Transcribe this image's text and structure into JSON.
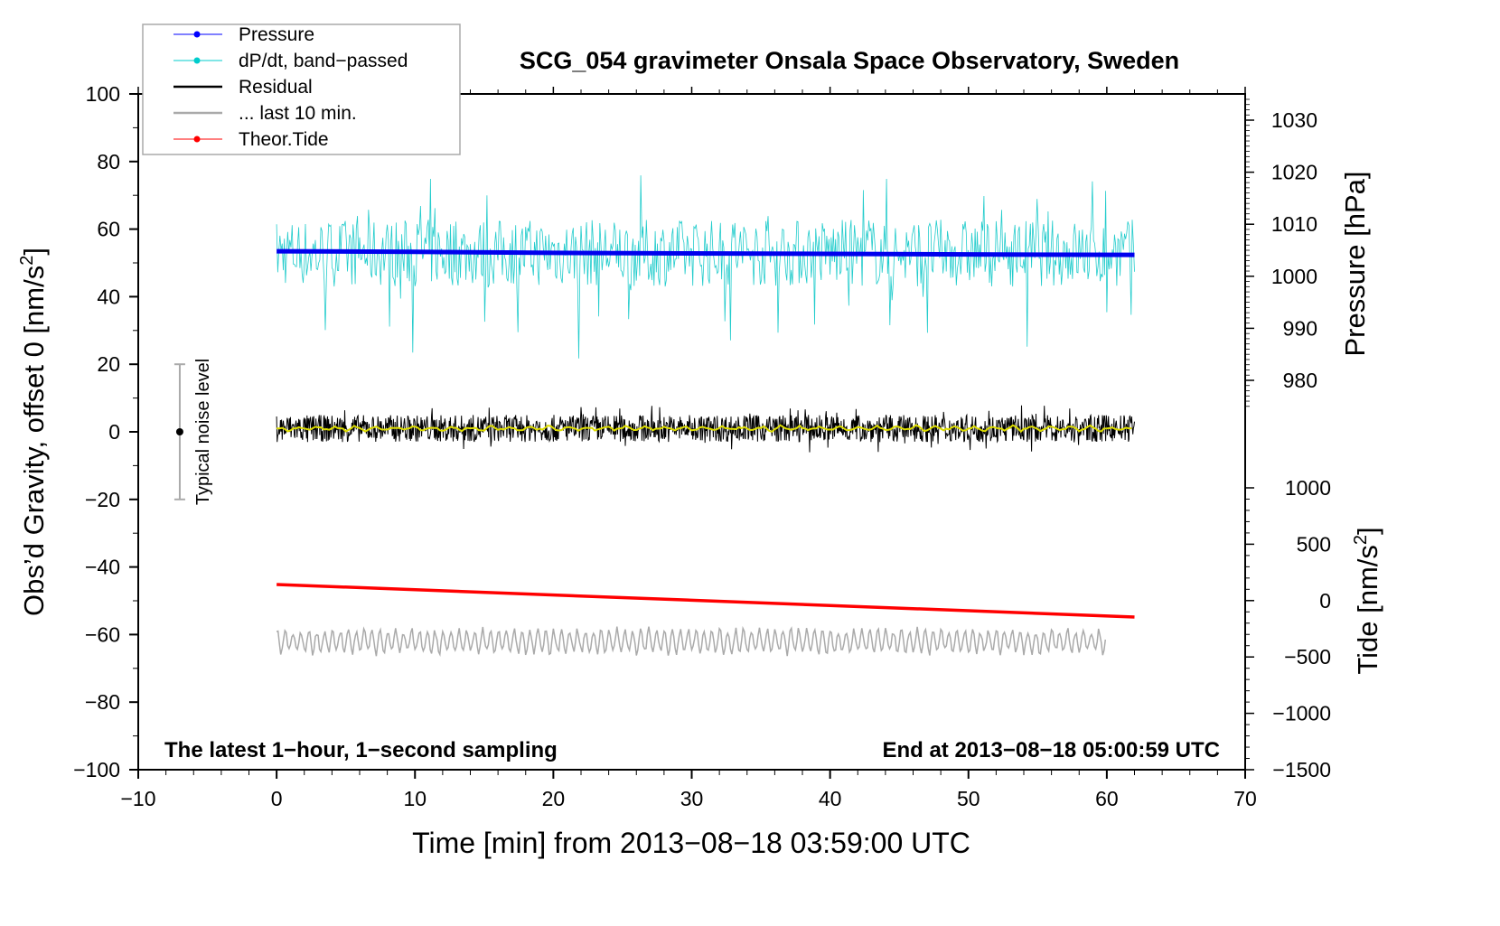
{
  "chart_data": {
    "type": "line",
    "title": "SCG_054 gravimeter Onsala Space Observatory, Sweden",
    "xlabel": "Time [min] from 2013−08−18 03:59:00 UTC",
    "ylabel": "Obs’d Gravity, offset 0 [nm/s",
    "ylabel_sup": "2",
    "ylabel_end": "]",
    "y2label": "Pressure [hPa]",
    "y3label": "Tide [nm/s",
    "y3label_sup": "2",
    "y3label_end": "]",
    "xlim": [
      -10,
      70
    ],
    "ylim": [
      -100,
      100
    ],
    "pressure_lim": [
      973.3,
      1033.7
    ],
    "tide_lim": [
      -1500,
      1000
    ],
    "xticks": [
      "−10",
      "0",
      "10",
      "20",
      "30",
      "40",
      "50",
      "60",
      "70"
    ],
    "yticks": [
      "100",
      "80",
      "60",
      "40",
      "20",
      "0",
      "−20",
      "−40",
      "−60",
      "−80",
      "−100"
    ],
    "pressure_ticks": [
      "1030",
      "1020",
      "1010",
      "1000",
      "990",
      "980"
    ],
    "tide_ticks": [
      "1000",
      "500",
      "0",
      "−500",
      "−1000",
      "−1500"
    ],
    "legend": {
      "placement": "top-left",
      "entries": [
        {
          "label": "Pressure",
          "color": "#0000ff"
        },
        {
          "label": "dP/dt, band−passed",
          "color": "#00cccc"
        },
        {
          "label": "Residual",
          "color": "#000000"
        },
        {
          "label": "... last 10 min.",
          "color": "#aaaaaa"
        },
        {
          "label": "Theor.Tide",
          "color": "#ff0000"
        }
      ]
    },
    "annotations": {
      "left": "The latest 1−hour, 1−second sampling",
      "right": "End at 2013−08−18 05:00:59 UTC",
      "noise": "Typical noise level"
    },
    "noise_bar": {
      "x": -7,
      "low": -20,
      "high": 20,
      "center": 0
    },
    "series": [
      {
        "name": "Pressure",
        "axis": "pressure",
        "x": [
          0,
          10,
          20,
          30,
          40,
          50,
          62
        ],
        "values": [
          1004.8,
          1004.7,
          1004.5,
          1004.4,
          1004.3,
          1004.2,
          1004.1
        ]
      },
      {
        "name": "dP/dt, band-passed",
        "axis": "gravity",
        "x_range": [
          0,
          62
        ],
        "baseline": 53,
        "amplitude": 10,
        "extremes": [
          15,
          76
        ]
      },
      {
        "name": "Residual",
        "axis": "gravity",
        "x_range": [
          0,
          62
        ],
        "baseline": 1,
        "amplitude": 4,
        "extremes": [
          -7,
          10
        ]
      },
      {
        "name": "Residual smoothed",
        "axis": "gravity",
        "x_range": [
          0,
          62
        ],
        "baseline": 1,
        "amplitude": 1,
        "color": "#dddd00"
      },
      {
        "name": "... last 10 min.",
        "axis": "gravity",
        "x_range": [
          0,
          60
        ],
        "baseline": -62,
        "amplitude": 3,
        "extremes": [
          -68,
          -56
        ]
      },
      {
        "name": "Theor.Tide",
        "axis": "tide",
        "x": [
          0,
          62
        ],
        "values": [
          143,
          -146
        ]
      }
    ]
  }
}
